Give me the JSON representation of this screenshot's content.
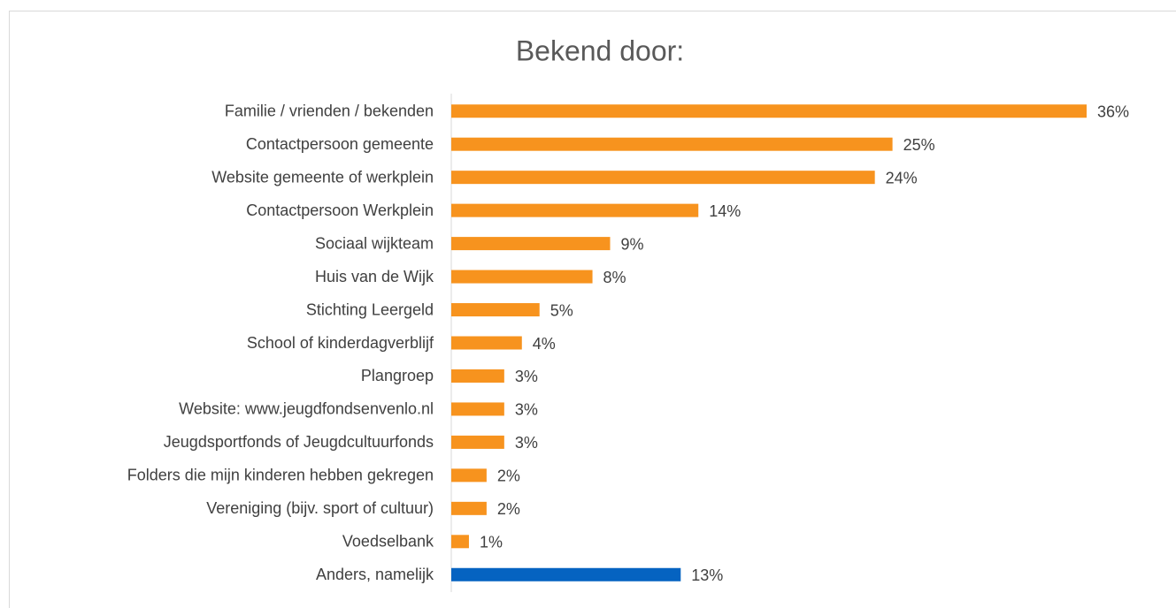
{
  "chart_data": {
    "type": "bar",
    "orientation": "horizontal",
    "title": "Bekend door:",
    "categories": [
      "Familie / vrienden / bekenden",
      "Contactpersoon gemeente",
      "Website gemeente of werkplein",
      "Contactpersoon Werkplein",
      "Sociaal wijkteam",
      "Huis van de Wijk",
      "Stichting Leergeld",
      "School of kinderdagverblijf",
      "Plangroep",
      "Website: www.jeugdfondsenvenlo.nl",
      "Jeugdsportfonds of Jeugdcultuurfonds",
      "Folders die mijn kinderen hebben gekregen",
      "Vereniging (bijv. sport of cultuur)",
      "Voedselbank",
      "Anders, namelijk"
    ],
    "values": [
      36,
      25,
      24,
      14,
      9,
      8,
      5,
      4,
      3,
      3,
      3,
      2,
      2,
      1,
      13
    ],
    "value_labels": [
      "36%",
      "25%",
      "24%",
      "14%",
      "9%",
      "8%",
      "5%",
      "4%",
      "3%",
      "3%",
      "3%",
      "2%",
      "2%",
      "1%",
      "13%"
    ],
    "colors": [
      "#f7931e",
      "#f7931e",
      "#f7931e",
      "#f7931e",
      "#f7931e",
      "#f7931e",
      "#f7931e",
      "#f7931e",
      "#f7931e",
      "#f7931e",
      "#f7931e",
      "#f7931e",
      "#f7931e",
      "#f7931e",
      "#0563c1"
    ],
    "xlim": [
      0,
      36
    ]
  }
}
